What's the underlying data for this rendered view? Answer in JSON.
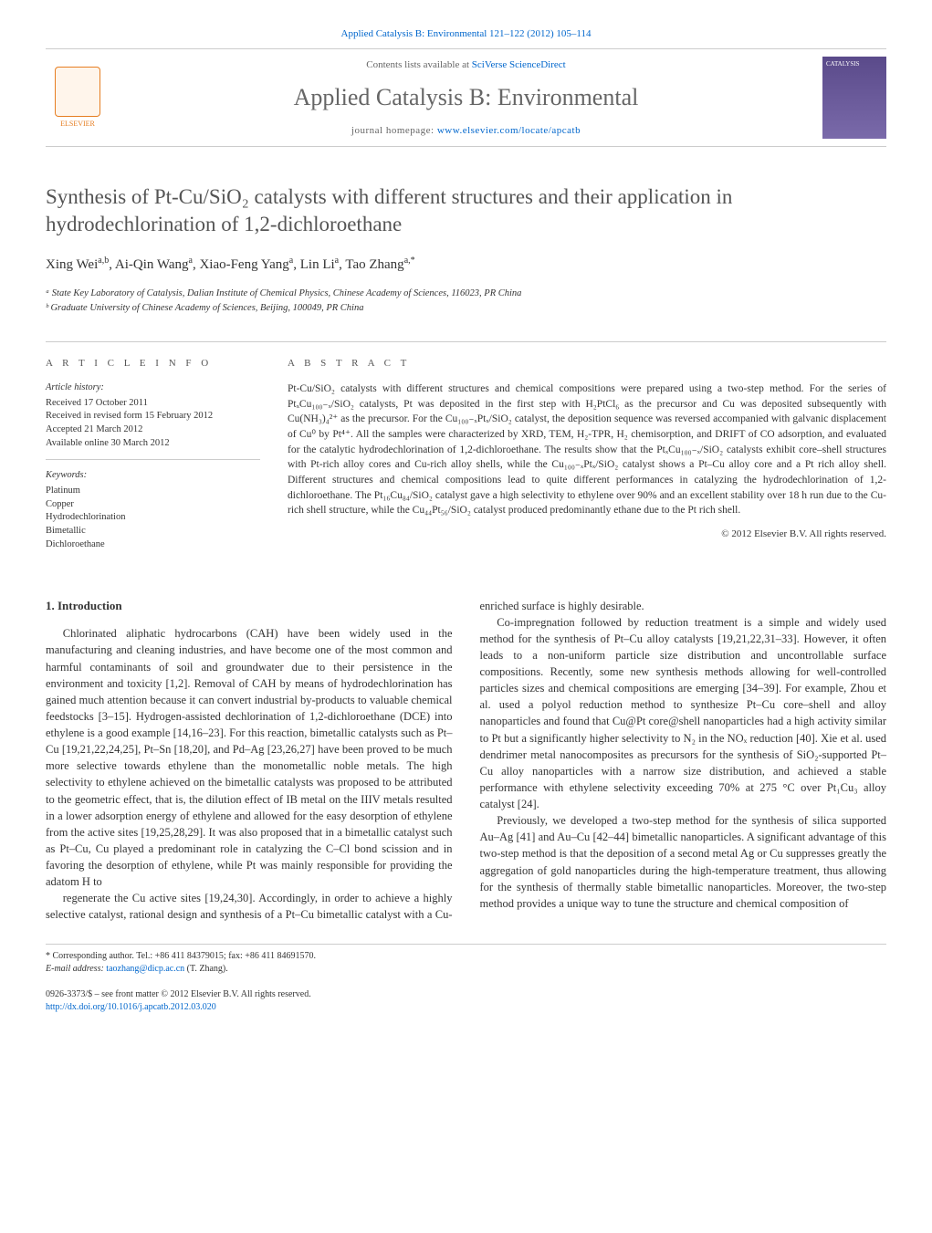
{
  "top_ref": "Applied Catalysis B: Environmental 121–122 (2012) 105–114",
  "masthead": {
    "elsevier_label": "ELSEVIER",
    "contents_prefix": "Contents lists available at ",
    "contents_link": "SciVerse ScienceDirect",
    "journal_title": "Applied Catalysis B: Environmental",
    "homepage_prefix": "journal homepage: ",
    "homepage_link": "www.elsevier.com/locate/apcatb",
    "cover_text": "CATALYSIS"
  },
  "title": "Synthesis of Pt-Cu/SiO₂ catalysts with different structures and their application in hydrodechlorination of 1,2-dichloroethane",
  "authors_html": "Xing Wei<sup>a,b</sup>, Ai-Qin Wang<sup>a</sup>, Xiao-Feng Yang<sup>a</sup>, Lin Li<sup>a</sup>, Tao Zhang<sup>a,*</sup>",
  "affiliations": {
    "a": "ᵃ State Key Laboratory of Catalysis, Dalian Institute of Chemical Physics, Chinese Academy of Sciences, 116023, PR China",
    "b": "ᵇ Graduate University of Chinese Academy of Sciences, Beijing, 100049, PR China"
  },
  "article_info": {
    "label": "a r t i c l e   i n f o",
    "history_head": "Article history:",
    "history": [
      "Received 17 October 2011",
      "Received in revised form 15 February 2012",
      "Accepted 21 March 2012",
      "Available online 30 March 2012"
    ],
    "keywords_head": "Keywords:",
    "keywords": [
      "Platinum",
      "Copper",
      "Hydrodechlorination",
      "Bimetallic",
      "Dichloroethane"
    ]
  },
  "abstract": {
    "label": "a b s t r a c t",
    "text": "Pt-Cu/SiO₂ catalysts with different structures and chemical compositions were prepared using a two-step method. For the series of PtₓCu₁₀₀₋ₓ/SiO₂ catalysts, Pt was deposited in the first step with H₂PtCl₆ as the precursor and Cu was deposited subsequently with Cu(NH₃)₄²⁺ as the precursor. For the Cu₁₀₀₋ₓPtₓ/SiO₂ catalyst, the deposition sequence was reversed accompanied with galvanic displacement of Cu⁰ by Pt⁴⁺. All the samples were characterized by XRD, TEM, H₂-TPR, H₂ chemisorption, and DRIFT of CO adsorption, and evaluated for the catalytic hydrodechlorination of 1,2-dichloroethane. The results show that the PtₓCu₁₀₀₋ₓ/SiO₂ catalysts exhibit core–shell structures with Pt-rich alloy cores and Cu-rich alloy shells, while the Cu₁₀₀₋ₓPtₓ/SiO₂ catalyst shows a Pt–Cu alloy core and a Pt rich alloy shell. Different structures and chemical compositions lead to quite different performances in catalyzing the hydrodechlorination of 1,2-dichloroethane. The Pt₁₆Cu₈₄/SiO₂ catalyst gave a high selectivity to ethylene over 90% and an excellent stability over 18 h run due to the Cu-rich shell structure, while the Cu₄₄Pt₅₆/SiO₂ catalyst produced predominantly ethane due to the Pt rich shell.",
    "copyright": "© 2012 Elsevier B.V. All rights reserved."
  },
  "body": {
    "heading": "1. Introduction",
    "p1": "Chlorinated aliphatic hydrocarbons (CAH) have been widely used in the manufacturing and cleaning industries, and have become one of the most common and harmful contaminants of soil and groundwater due to their persistence in the environment and toxicity [1,2]. Removal of CAH by means of hydrodechlorination has gained much attention because it can convert industrial by-products to valuable chemical feedstocks [3–15]. Hydrogen-assisted dechlorination of 1,2-dichloroethane (DCE) into ethylene is a good example [14,16–23]. For this reaction, bimetallic catalysts such as Pt–Cu [19,21,22,24,25], Pt–Sn [18,20], and Pd–Ag [23,26,27] have been proved to be much more selective towards ethylene than the monometallic noble metals. The high selectivity to ethylene achieved on the bimetallic catalysts was proposed to be attributed to the geometric effect, that is, the dilution effect of IB metal on the IIIV metals resulted in a lower adsorption energy of ethylene and allowed for the easy desorption of ethylene from the active sites [19,25,28,29]. It was also proposed that in a bimetallic catalyst such as Pt–Cu, Cu played a predominant role in catalyzing the C–Cl bond scission and in favoring the desorption of ethylene, while Pt was mainly responsible for providing the adatom H to",
    "p2": "regenerate the Cu active sites [19,24,30]. Accordingly, in order to achieve a highly selective catalyst, rational design and synthesis of a Pt–Cu bimetallic catalyst with a Cu-enriched surface is highly desirable.",
    "p3": "Co-impregnation followed by reduction treatment is a simple and widely used method for the synthesis of Pt–Cu alloy catalysts [19,21,22,31–33]. However, it often leads to a non-uniform particle size distribution and uncontrollable surface compositions. Recently, some new synthesis methods allowing for well-controlled particles sizes and chemical compositions are emerging [34–39]. For example, Zhou et al. used a polyol reduction method to synthesize Pt–Cu core–shell and alloy nanoparticles and found that Cu@Pt core@shell nanoparticles had a high activity similar to Pt but a significantly higher selectivity to N₂ in the NOₓ reduction [40]. Xie et al. used dendrimer metal nanocomposites as precursors for the synthesis of SiO₂-supported Pt–Cu alloy nanoparticles with a narrow size distribution, and achieved a stable performance with ethylene selectivity exceeding 70% at 275 °C over Pt₁Cu₃ alloy catalyst [24].",
    "p4": "Previously, we developed a two-step method for the synthesis of silica supported Au–Ag [41] and Au–Cu [42–44] bimetallic nanoparticles. A significant advantage of this two-step method is that the deposition of a second metal Ag or Cu suppresses greatly the aggregation of gold nanoparticles during the high-temperature treatment, thus allowing for the synthesis of thermally stable bimetallic nanoparticles. Moreover, the two-step method provides a unique way to tune the structure and chemical composition of"
  },
  "footnotes": {
    "corresponding": "* Corresponding author. Tel.: +86 411 84379015; fax: +86 411 84691570.",
    "email_label": "E-mail address: ",
    "email": "taozhang@dicp.ac.cn",
    "email_paren": " (T. Zhang)."
  },
  "footer": {
    "left1": "0926-3373/$ – see front matter © 2012 Elsevier B.V. All rights reserved.",
    "left2": "http://dx.doi.org/10.1016/j.apcatb.2012.03.020"
  },
  "colors": {
    "link": "#0066cc",
    "text": "#333333",
    "title_gray": "#555555",
    "rule": "#cccccc",
    "elsevier_orange": "#e67e22",
    "cover_bg": "#5a4a8a"
  },
  "typography": {
    "body_pt": 12.5,
    "title_pt": 23,
    "journal_title_pt": 26,
    "abstract_pt": 11.5,
    "small_pt": 10.5
  }
}
